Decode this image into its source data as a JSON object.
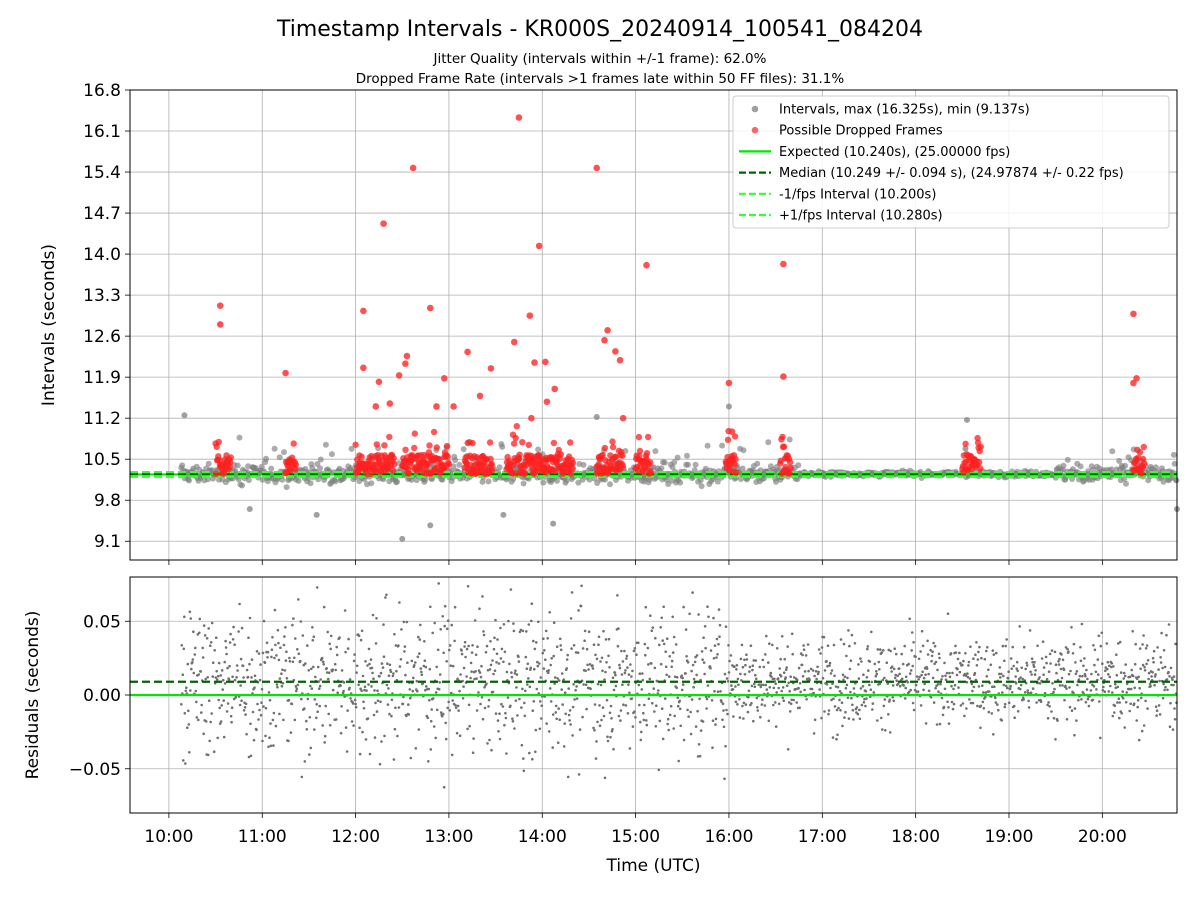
{
  "title": "Timestamp Intervals - KR000S_20240914_100541_084204",
  "subtitle1": "Jitter Quality (intervals within +/-1 frame): 62.0%",
  "subtitle2": "Dropped Frame Rate (intervals >1 frames late within 50 FF files): 31.1%",
  "chart_data": [
    {
      "type": "scatter",
      "ylabel": "Intervals (seconds)",
      "xlabel": "",
      "xlim": [
        "09:35",
        "20:48"
      ],
      "ylim": [
        8.78,
        16.8
      ],
      "yticks": [
        "16.8",
        "16.1",
        "15.4",
        "14.7",
        "14.0",
        "13.3",
        "12.6",
        "11.9",
        "11.2",
        "10.5",
        "9.8",
        "9.1"
      ],
      "ytick_values": [
        16.8,
        16.1,
        15.4,
        14.7,
        14.0,
        13.3,
        12.6,
        11.9,
        11.2,
        10.5,
        9.8,
        9.1
      ],
      "grid": true,
      "legend_position": "top-right",
      "legend": [
        {
          "label": "Intervals, max (16.325s), min (9.137s)",
          "kind": "marker",
          "color": "#808080"
        },
        {
          "label": "Possible Dropped Frames",
          "kind": "marker",
          "color": "#ff3333"
        },
        {
          "label": "Expected (10.240s), (25.00000 fps)",
          "kind": "line",
          "color": "#00e600",
          "dash": "solid"
        },
        {
          "label": "Median (10.249 +/- 0.094 s), (24.97874 +/- 0.22 fps)",
          "kind": "line",
          "color": "#006400",
          "dash": "dashed"
        },
        {
          "label": "-1/fps Interval (10.200s)",
          "kind": "line",
          "color": "#33ff33",
          "dash": "dashed"
        },
        {
          "label": "+1/fps Interval (10.280s)",
          "kind": "line",
          "color": "#33ff33",
          "dash": "dashed"
        }
      ],
      "hlines": [
        {
          "y": 10.24,
          "color": "#00e600",
          "dash": "solid"
        },
        {
          "y": 10.249,
          "color": "#006400",
          "dash": "dashed"
        },
        {
          "y": 10.2,
          "color": "#33ff33",
          "dash": "dashed"
        },
        {
          "y": 10.28,
          "color": "#33ff33",
          "dash": "dashed"
        }
      ],
      "series": [
        {
          "name": "Intervals, max (16.325s), min (9.137s)",
          "color": "#808080",
          "max": 16.325,
          "min": 9.137,
          "median": 10.249,
          "std": 0.094,
          "outliers": [
            [
              "10:10",
              11.25
            ],
            [
              "10:52",
              9.65
            ],
            [
              "11:35",
              9.55
            ],
            [
              "12:30",
              9.14
            ],
            [
              "12:48",
              9.37
            ],
            [
              "13:35",
              9.55
            ],
            [
              "14:07",
              9.4
            ],
            [
              "14:35",
              11.22
            ],
            [
              "16:00",
              11.4
            ],
            [
              "18:33",
              11.17
            ],
            [
              "18:32",
              10.68
            ],
            [
              "20:48",
              9.65
            ]
          ]
        },
        {
          "name": "Possible Dropped Frames",
          "color": "#ff3333",
          "points": [
            [
              "10:33",
              13.12
            ],
            [
              "10:33",
              12.8
            ],
            [
              "11:15",
              11.97
            ],
            [
              "12:05",
              12.06
            ],
            [
              "12:05",
              13.03
            ],
            [
              "12:13",
              11.4
            ],
            [
              "12:15",
              11.82
            ],
            [
              "12:18",
              14.52
            ],
            [
              "12:22",
              11.45
            ],
            [
              "12:28",
              11.93
            ],
            [
              "12:32",
              12.13
            ],
            [
              "12:33",
              12.26
            ],
            [
              "12:37",
              15.47
            ],
            [
              "12:48",
              13.08
            ],
            [
              "12:52",
              11.4
            ],
            [
              "12:57",
              11.88
            ],
            [
              "13:03",
              11.4
            ],
            [
              "13:12",
              12.33
            ],
            [
              "13:20",
              11.58
            ],
            [
              "13:27",
              12.05
            ],
            [
              "13:42",
              12.5
            ],
            [
              "13:45",
              16.33
            ],
            [
              "13:52",
              12.95
            ],
            [
              "13:53",
              11.2
            ],
            [
              "13:55",
              12.15
            ],
            [
              "13:58",
              14.14
            ],
            [
              "14:02",
              12.16
            ],
            [
              "14:03",
              11.48
            ],
            [
              "14:08",
              11.7
            ],
            [
              "14:35",
              15.47
            ],
            [
              "14:40",
              12.53
            ],
            [
              "14:42",
              12.7
            ],
            [
              "14:47",
              12.34
            ],
            [
              "14:50",
              12.19
            ],
            [
              "14:52",
              11.2
            ],
            [
              "15:07",
              13.81
            ],
            [
              "16:00",
              11.8
            ],
            [
              "16:02",
              10.97
            ],
            [
              "16:35",
              13.83
            ],
            [
              "16:35",
              11.91
            ],
            [
              "20:20",
              12.98
            ],
            [
              "20:22",
              11.88
            ],
            [
              "20:20",
              11.8
            ]
          ]
        }
      ]
    },
    {
      "type": "scatter",
      "ylabel": "Residuals (seconds)",
      "xlabel": "Time (UTC)",
      "xlim": [
        "09:35",
        "20:48"
      ],
      "ylim": [
        -0.08,
        0.08
      ],
      "yticks": [
        "0.05",
        "0.00",
        "−0.05"
      ],
      "ytick_values": [
        0.05,
        0.0,
        -0.05
      ],
      "xticks": [
        "10:00",
        "11:00",
        "12:00",
        "13:00",
        "14:00",
        "15:00",
        "16:00",
        "17:00",
        "18:00",
        "19:00",
        "20:00"
      ],
      "grid": true,
      "hlines": [
        {
          "y": 0.0,
          "color": "#00e600",
          "dash": "solid"
        },
        {
          "y": 0.009,
          "color": "#006400",
          "dash": "dashed"
        }
      ],
      "series": [
        {
          "name": "",
          "color": "#707070",
          "spread_before_16h": 0.05,
          "spread_after_16h": 0.03,
          "center": 0.01
        }
      ]
    }
  ]
}
